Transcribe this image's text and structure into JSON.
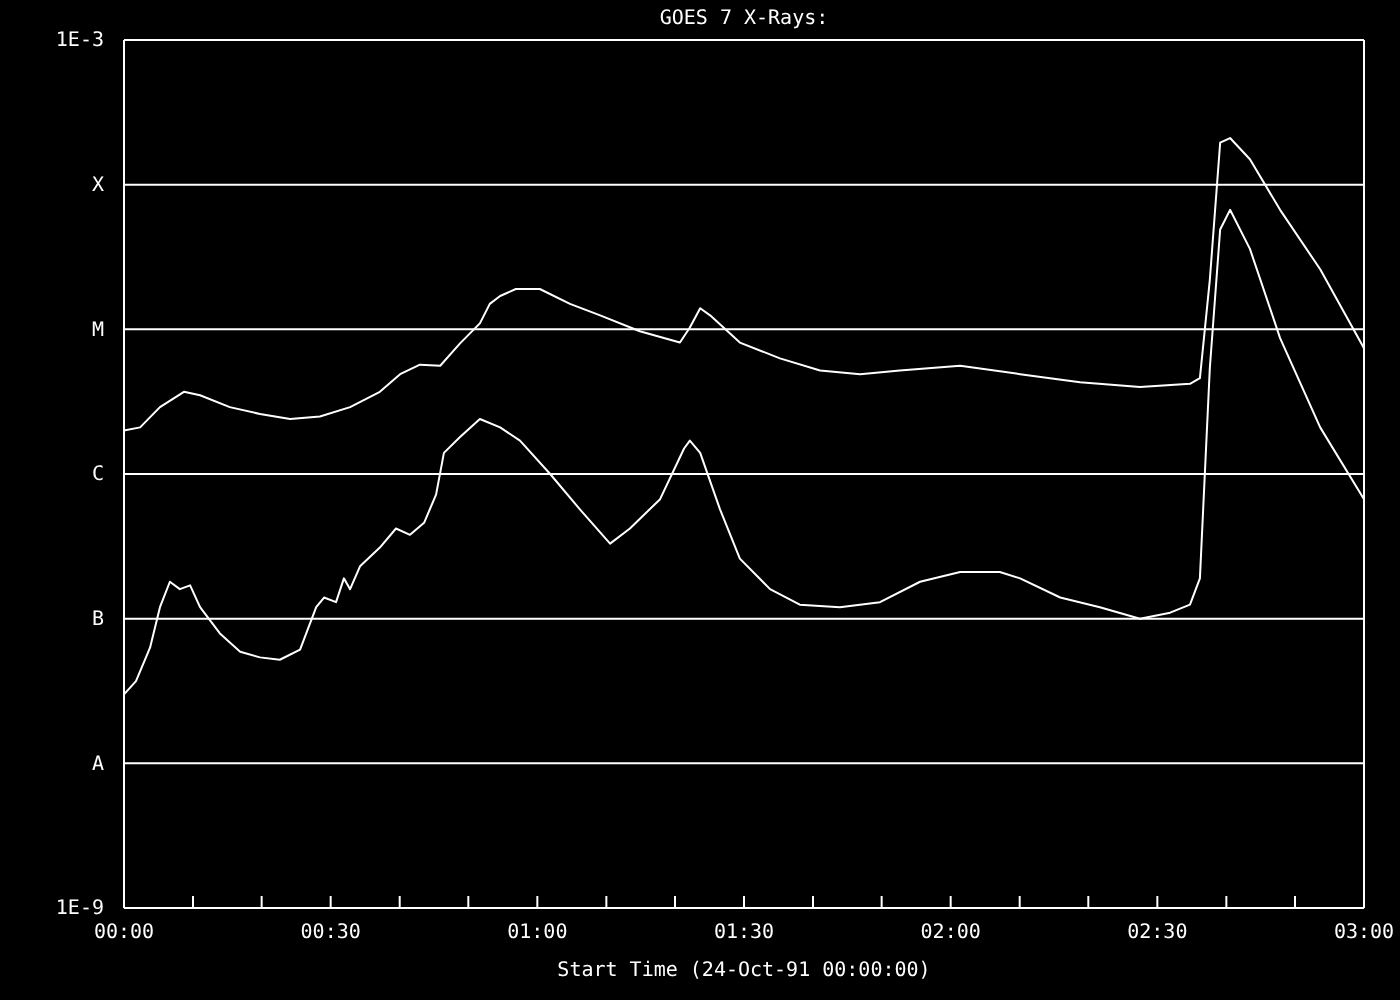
{
  "chart_data": {
    "type": "line",
    "title": "GOES 7 X-Rays:",
    "xlabel": "Start Time (24-Oct-91 00:00:00)",
    "log": "y",
    "grid": "y",
    "line_style": "solid",
    "marker": "none",
    "xlim": [
      0,
      3
    ],
    "xticks": [
      {
        "value": 0,
        "label": "00:00"
      },
      {
        "value": 0.167,
        "label": null
      },
      {
        "value": 0.333,
        "label": null
      },
      {
        "value": 0.5,
        "label": "00:30"
      },
      {
        "value": 0.667,
        "label": null
      },
      {
        "value": 0.833,
        "label": null
      },
      {
        "value": 1,
        "label": "01:00"
      },
      {
        "value": 1.167,
        "label": null
      },
      {
        "value": 1.333,
        "label": null
      },
      {
        "value": 1.5,
        "label": "01:30"
      },
      {
        "value": 1.667,
        "label": null
      },
      {
        "value": 1.833,
        "label": null
      },
      {
        "value": 2,
        "label": "02:00"
      },
      {
        "value": 2.167,
        "label": null
      },
      {
        "value": 2.333,
        "label": null
      },
      {
        "value": 2.5,
        "label": "02:30"
      },
      {
        "value": 2.667,
        "label": null
      },
      {
        "value": 2.833,
        "label": null
      },
      {
        "value": 3,
        "label": "03:00"
      }
    ],
    "ylim": [
      1e-09,
      0.001
    ],
    "yticks": [
      {
        "value": 1e-09,
        "label": "1E-9"
      },
      {
        "value": 1e-08,
        "label": "A"
      },
      {
        "value": 1e-07,
        "label": "B"
      },
      {
        "value": 1e-06,
        "label": "C"
      },
      {
        "value": 1e-05,
        "label": "M"
      },
      {
        "value": 0.0001,
        "label": "X"
      },
      {
        "value": 0.001,
        "label": "1E-3"
      }
    ],
    "series": [
      {
        "color": "#ffffff",
        "x": [
          0,
          0.039,
          0.087,
          0.145,
          0.184,
          0.256,
          0.329,
          0.402,
          0.474,
          0.547,
          0.619,
          0.668,
          0.716,
          0.765,
          0.813,
          0.861,
          0.885,
          0.91,
          0.948,
          1.006,
          1.079,
          1.152,
          1.248,
          1.345,
          1.369,
          1.394,
          1.418,
          1.49,
          1.587,
          1.684,
          1.781,
          1.877,
          2.023,
          2.168,
          2.313,
          2.458,
          2.579,
          2.603,
          2.627,
          2.652,
          2.676,
          2.724,
          2.797,
          2.894,
          3.0
        ],
        "values": [
          2e-06,
          2.1e-06,
          2.9e-06,
          3.7e-06,
          3.5e-06,
          2.9e-06,
          2.6e-06,
          2.4e-06,
          2.5e-06,
          2.9e-06,
          3.7e-06,
          4.9e-06,
          5.7e-06,
          5.6e-06,
          8e-06,
          1.1e-05,
          1.5e-05,
          1.7e-05,
          1.9e-05,
          1.9e-05,
          1.5e-05,
          1.25e-05,
          9.7e-06,
          8.1e-06,
          1.03e-05,
          1.4e-05,
          1.25e-05,
          8.1e-06,
          6.3e-06,
          5.2e-06,
          4.9e-06,
          5.2e-06,
          5.6e-06,
          4.9e-06,
          4.3e-06,
          4e-06,
          4.2e-06,
          4.6e-06,
          2.2e-05,
          0.000195,
          0.00021,
          0.00015,
          6.7e-05,
          2.6e-05,
          7.4e-06
        ]
      },
      {
        "color": "#ffffff",
        "x": [
          0,
          0.029,
          0.063,
          0.087,
          0.111,
          0.135,
          0.16,
          0.184,
          0.232,
          0.281,
          0.329,
          0.377,
          0.426,
          0.465,
          0.484,
          0.513,
          0.532,
          0.547,
          0.571,
          0.619,
          0.658,
          0.692,
          0.726,
          0.755,
          0.774,
          0.813,
          0.861,
          0.91,
          0.958,
          1.031,
          1.103,
          1.176,
          1.224,
          1.297,
          1.355,
          1.369,
          1.394,
          1.442,
          1.49,
          1.563,
          1.635,
          1.732,
          1.829,
          1.926,
          2.023,
          2.119,
          2.168,
          2.265,
          2.361,
          2.458,
          2.531,
          2.579,
          2.603,
          2.627,
          2.652,
          2.676,
          2.724,
          2.797,
          2.894,
          3.0
        ],
        "values": [
          3e-08,
          3.7e-08,
          6.3e-08,
          1.2e-07,
          1.8e-07,
          1.6e-07,
          1.7e-07,
          1.2e-07,
          7.9e-08,
          5.9e-08,
          5.4e-08,
          5.2e-08,
          6.1e-08,
          1.2e-07,
          1.4e-07,
          1.3e-07,
          1.9e-07,
          1.6e-07,
          2.3e-07,
          3.1e-07,
          4.2e-07,
          3.8e-07,
          4.6e-07,
          7.2e-07,
          1.4e-06,
          1.8e-06,
          2.4e-06,
          2.1e-06,
          1.7e-06,
          1e-06,
          5.7e-07,
          3.3e-07,
          4.2e-07,
          6.7e-07,
          1.5e-06,
          1.7e-06,
          1.4e-06,
          5.7e-07,
          2.6e-07,
          1.6e-07,
          1.25e-07,
          1.2e-07,
          1.3e-07,
          1.8e-07,
          2.1e-07,
          2.1e-07,
          1.9e-07,
          1.4e-07,
          1.2e-07,
          1e-07,
          1.1e-07,
          1.25e-07,
          1.9e-07,
          5.4e-06,
          4.9e-05,
          6.7e-05,
          3.6e-05,
          8.7e-06,
          2.1e-06,
          6.7e-07
        ]
      }
    ]
  }
}
